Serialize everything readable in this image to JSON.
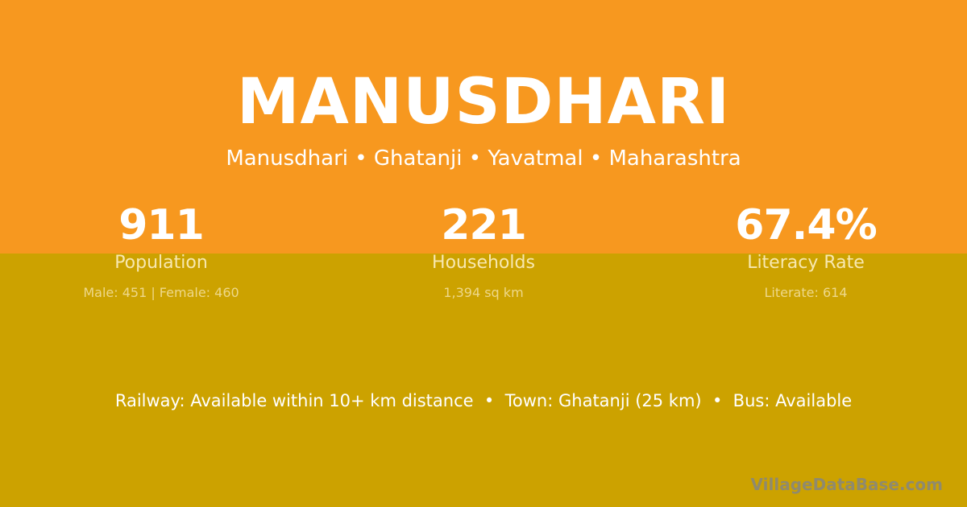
{
  "colors": {
    "top_background": "#F7981F",
    "bottom_background": "#CCA200"
  },
  "village_name": "MANUSDHARI",
  "breadcrumb": "Manusdhari • Ghatanji • Yavatmal • Maharashtra",
  "stats": [
    {
      "value": "911",
      "label": "Population",
      "sub": "Male: 451 | Female: 460"
    },
    {
      "value": "221",
      "label": "Households",
      "sub": "1,394 sq km"
    },
    {
      "value": "67.4%",
      "label": "Literacy Rate",
      "sub": "Literate: 614"
    }
  ],
  "facts": "Railway: Available within 10+ km distance  •  Town: Ghatanji (25 km)  •  Bus: Available",
  "watermark": "VillageDataBase.com"
}
